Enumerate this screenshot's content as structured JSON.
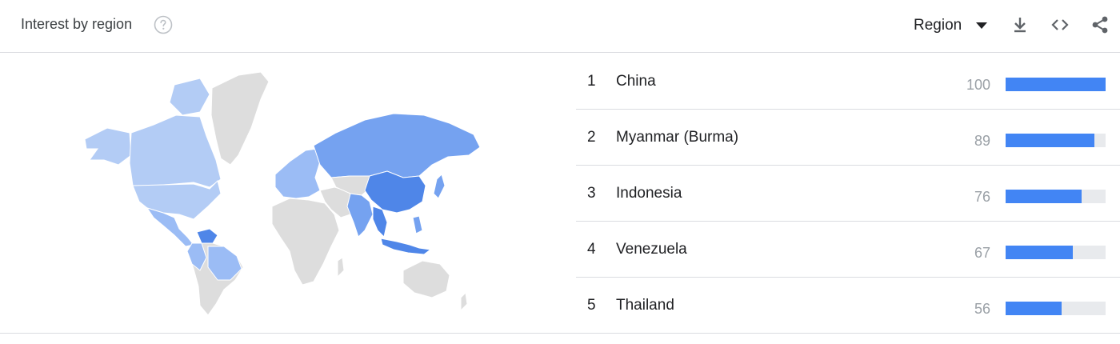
{
  "header": {
    "title": "Interest by region",
    "help_icon": "help-circle-icon",
    "region_select": {
      "selected": "Region",
      "icon": "caret-down-icon"
    },
    "tools": [
      {
        "name": "download",
        "icon": "download-icon"
      },
      {
        "name": "embed",
        "icon": "code-icon"
      },
      {
        "name": "share",
        "icon": "share-icon"
      }
    ]
  },
  "colors": {
    "bar_fill": "#4285f4",
    "bar_track": "#e8eaed",
    "map_highest": "#4f86e8",
    "map_high": "#75a2f0",
    "map_mid": "#9bbcf5",
    "map_low": "#b3ccf5",
    "map_no_data": "#dddddd"
  },
  "regions": [
    {
      "rank": "1",
      "name": "China",
      "value": 100
    },
    {
      "rank": "2",
      "name": "Myanmar (Burma)",
      "value": 89
    },
    {
      "rank": "3",
      "name": "Indonesia",
      "value": 76
    },
    {
      "rank": "4",
      "name": "Venezuela",
      "value": 67
    },
    {
      "rank": "5",
      "name": "Thailand",
      "value": 56
    }
  ]
}
